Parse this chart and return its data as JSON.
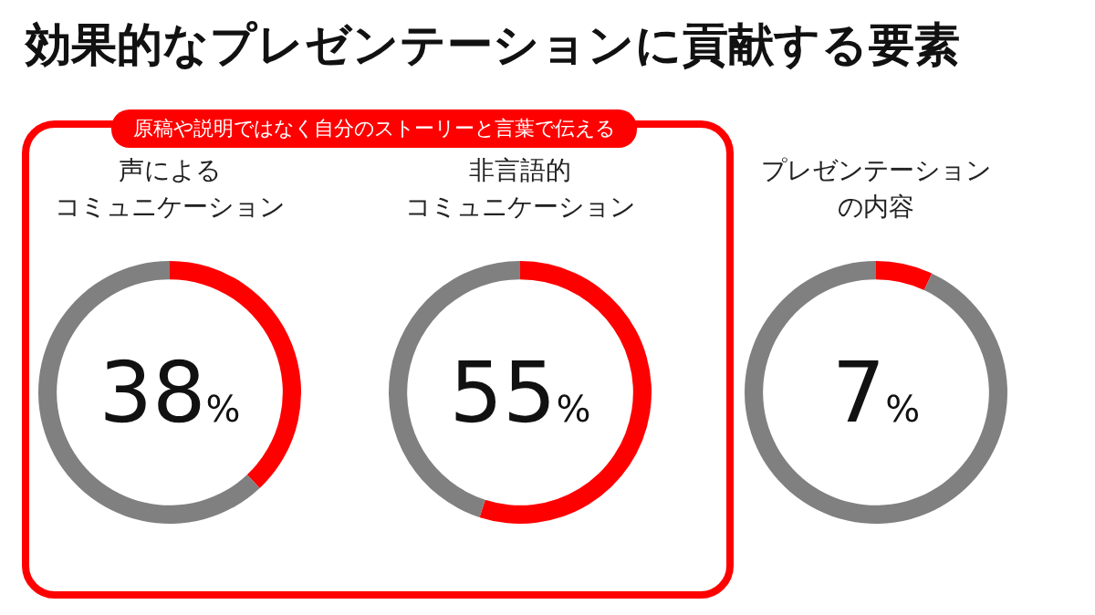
{
  "chart_data": [
    {
      "type": "other",
      "title": "効果的なプレゼンテーションに貢献する要素",
      "annotations": [
        "原稿や説明ではなく自分のストーリーと言葉で伝える"
      ]
    },
    {
      "type": "donut",
      "title": "声による",
      "subtitle": "コミュニケーション",
      "categories": [
        null,
        null
      ],
      "values": [
        38,
        62
      ],
      "colors": [
        "#ff0000",
        "#808080"
      ],
      "value_labels": [
        "38%",
        null
      ]
    },
    {
      "type": "donut",
      "title": "非言語的",
      "subtitle": "コミュニケーション",
      "categories": [
        null,
        null
      ],
      "values": [
        55,
        45
      ],
      "colors": [
        "#ff0000",
        "#808080"
      ],
      "value_labels": [
        "55%",
        null
      ]
    },
    {
      "type": "donut",
      "title": "プレゼンテーション",
      "subtitle": "の内容",
      "categories": [
        null,
        null
      ],
      "values": [
        7,
        93
      ],
      "colors": [
        "#ff0000",
        "#808080"
      ],
      "value_labels": [
        "7%",
        null
      ]
    }
  ]
}
